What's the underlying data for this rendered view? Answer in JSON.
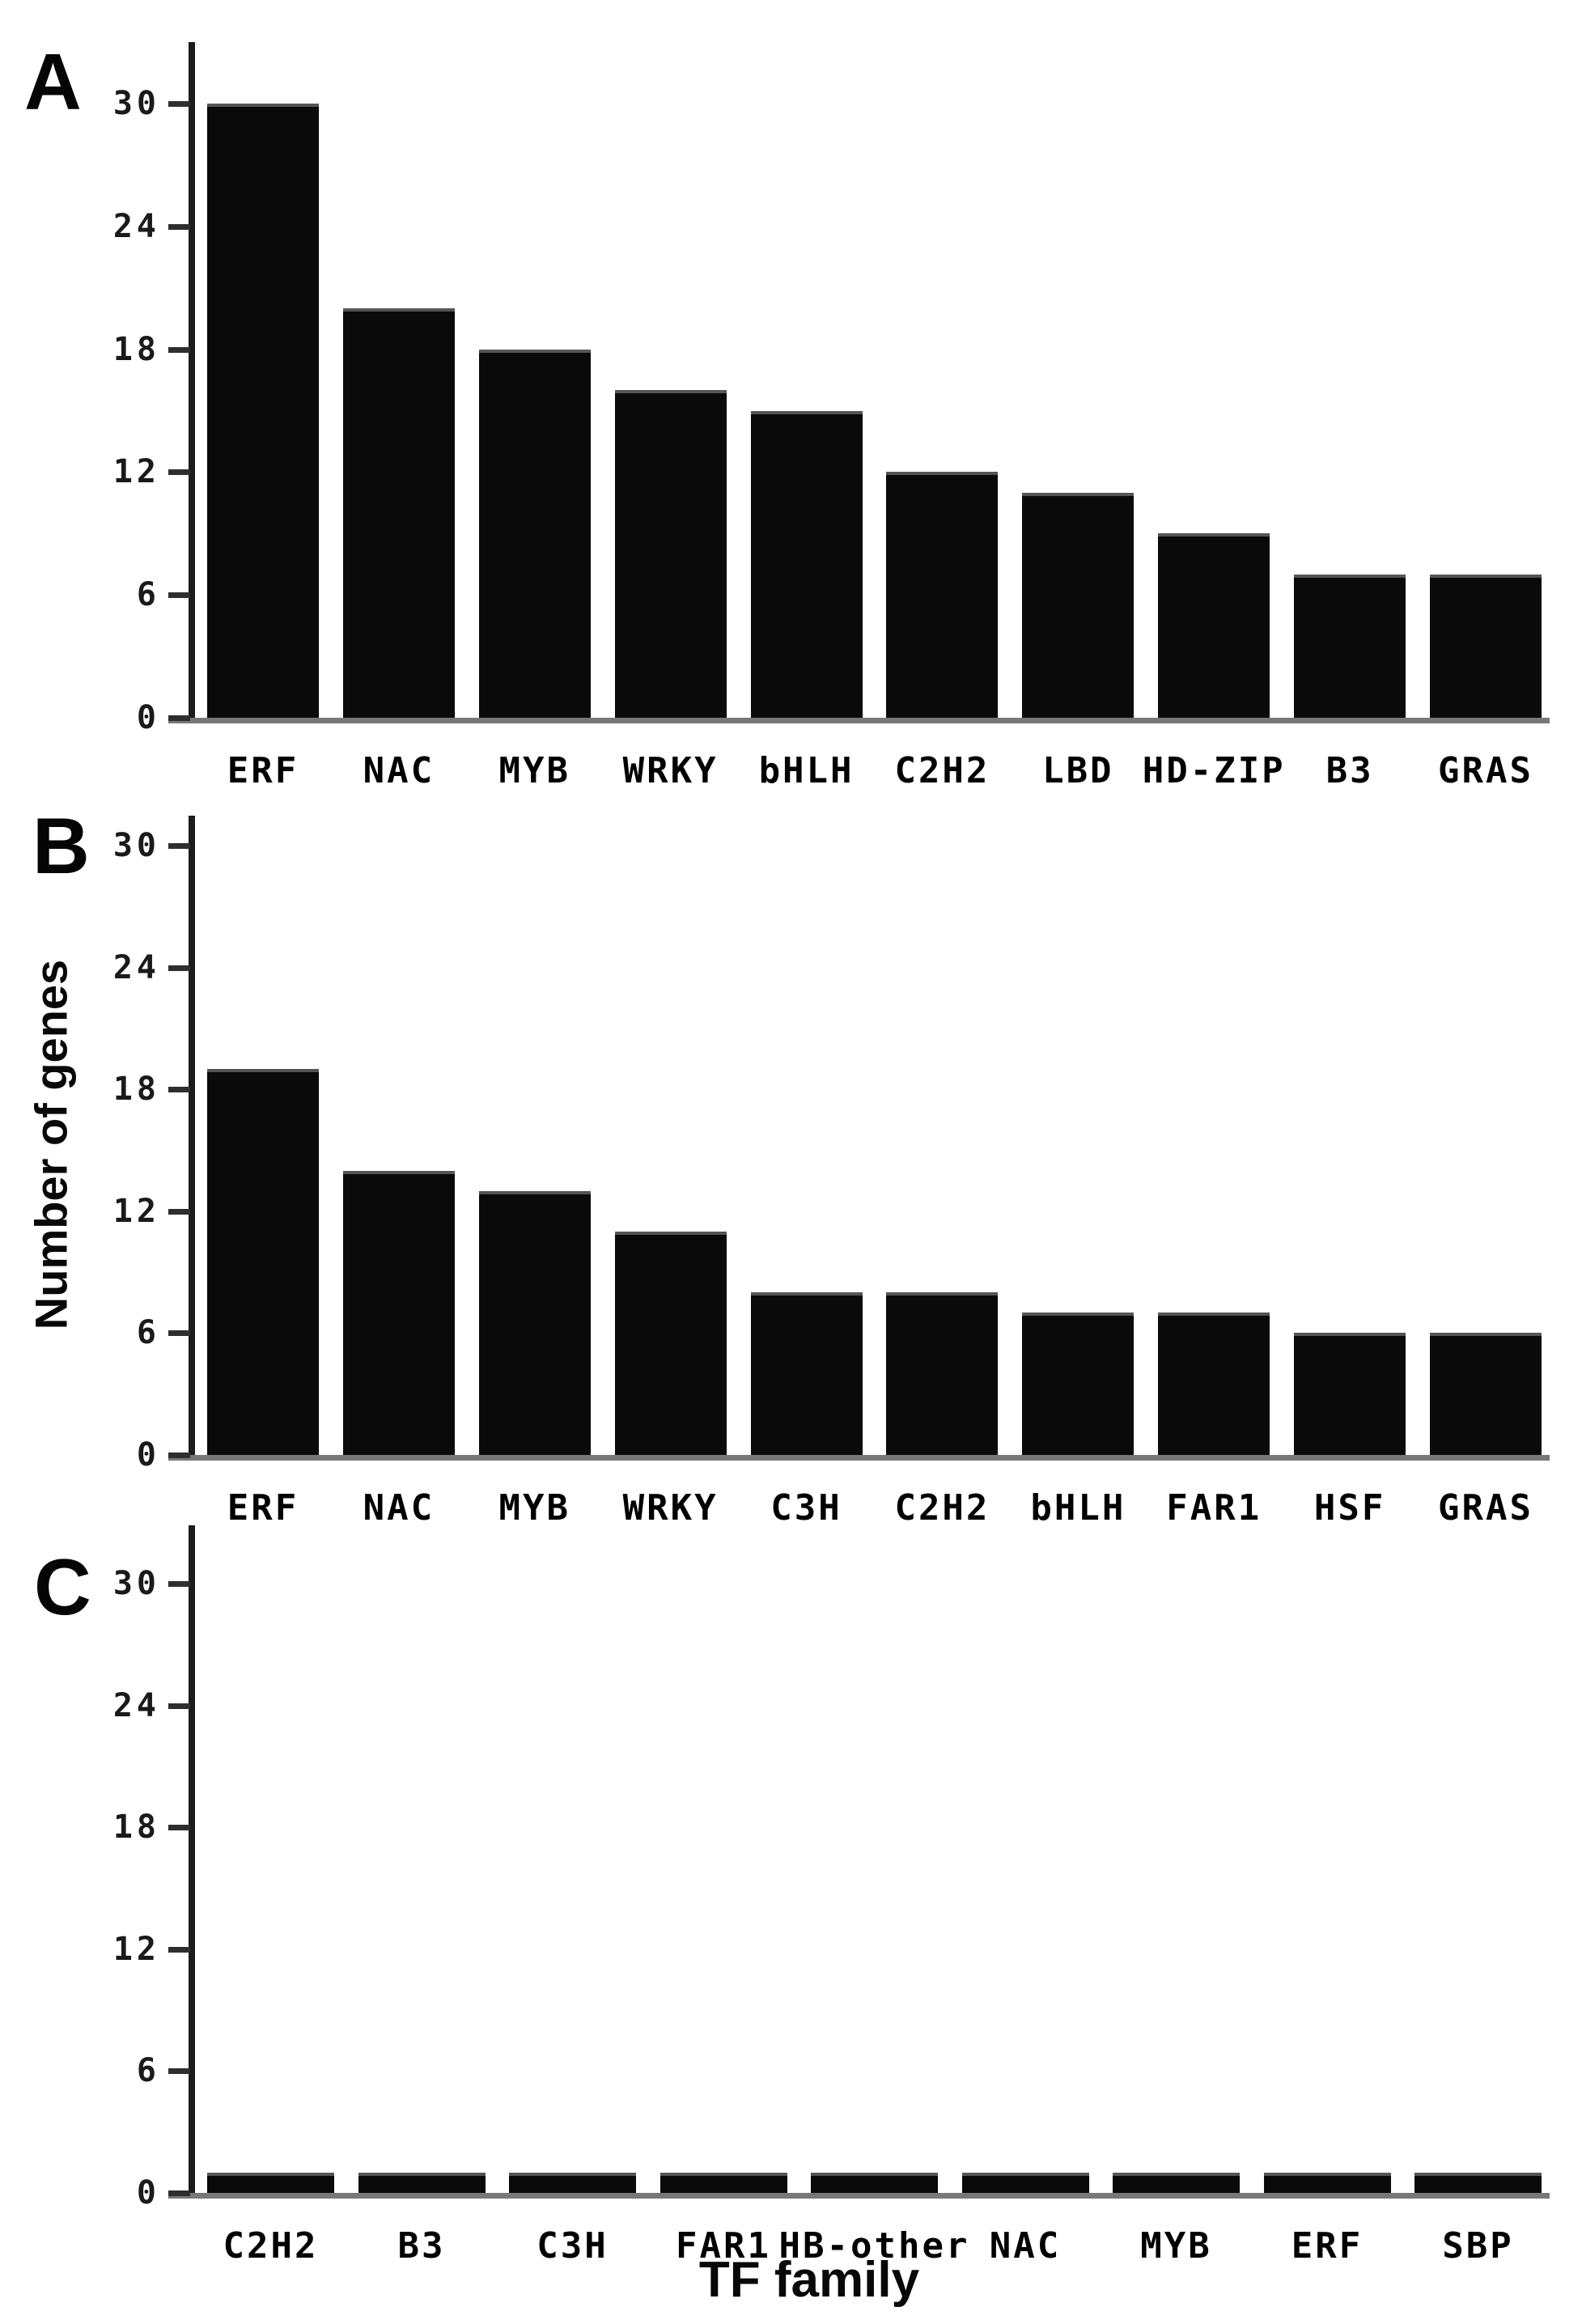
{
  "figure": {
    "ylabel": "Number of genes",
    "xlabel": "TF family"
  },
  "chart_data": [
    {
      "type": "bar",
      "panel_label": "A",
      "categories": [
        "ERF",
        "NAC",
        "MYB",
        "WRKY",
        "bHLH",
        "C2H2",
        "LBD",
        "HD-ZIP",
        "B3",
        "GRAS"
      ],
      "values": [
        30,
        20,
        18,
        16,
        15,
        12,
        11,
        9,
        7,
        7
      ],
      "yticks": [
        0,
        6,
        12,
        18,
        24,
        30
      ],
      "ylim": [
        0,
        33
      ],
      "bar_color": "#0a0a0a",
      "grid": "off",
      "legend": "none"
    },
    {
      "type": "bar",
      "panel_label": "B",
      "ylabel": "Number of genes",
      "categories": [
        "ERF",
        "NAC",
        "MYB",
        "WRKY",
        "C3H",
        "C2H2",
        "bHLH",
        "FAR1",
        "HSF",
        "GRAS"
      ],
      "values": [
        19,
        14,
        13,
        11,
        8,
        8,
        7,
        7,
        6,
        6
      ],
      "yticks": [
        0,
        6,
        12,
        18,
        24,
        30
      ],
      "ylim": [
        0,
        33
      ],
      "bar_color": "#0a0a0a",
      "grid": "off",
      "legend": "none"
    },
    {
      "type": "bar",
      "panel_label": "C",
      "xlabel": "TF family",
      "categories": [
        "C2H2",
        "B3",
        "C3H",
        "FAR1",
        "HB-other",
        "NAC",
        "MYB",
        "ERF",
        "SBP"
      ],
      "values": [
        1,
        1,
        1,
        1,
        1,
        1,
        1,
        1,
        1
      ],
      "yticks": [
        0,
        6,
        12,
        18,
        24,
        30
      ],
      "ylim": [
        0,
        33
      ],
      "bar_color": "#0a0a0a",
      "grid": "off",
      "legend": "none"
    }
  ]
}
